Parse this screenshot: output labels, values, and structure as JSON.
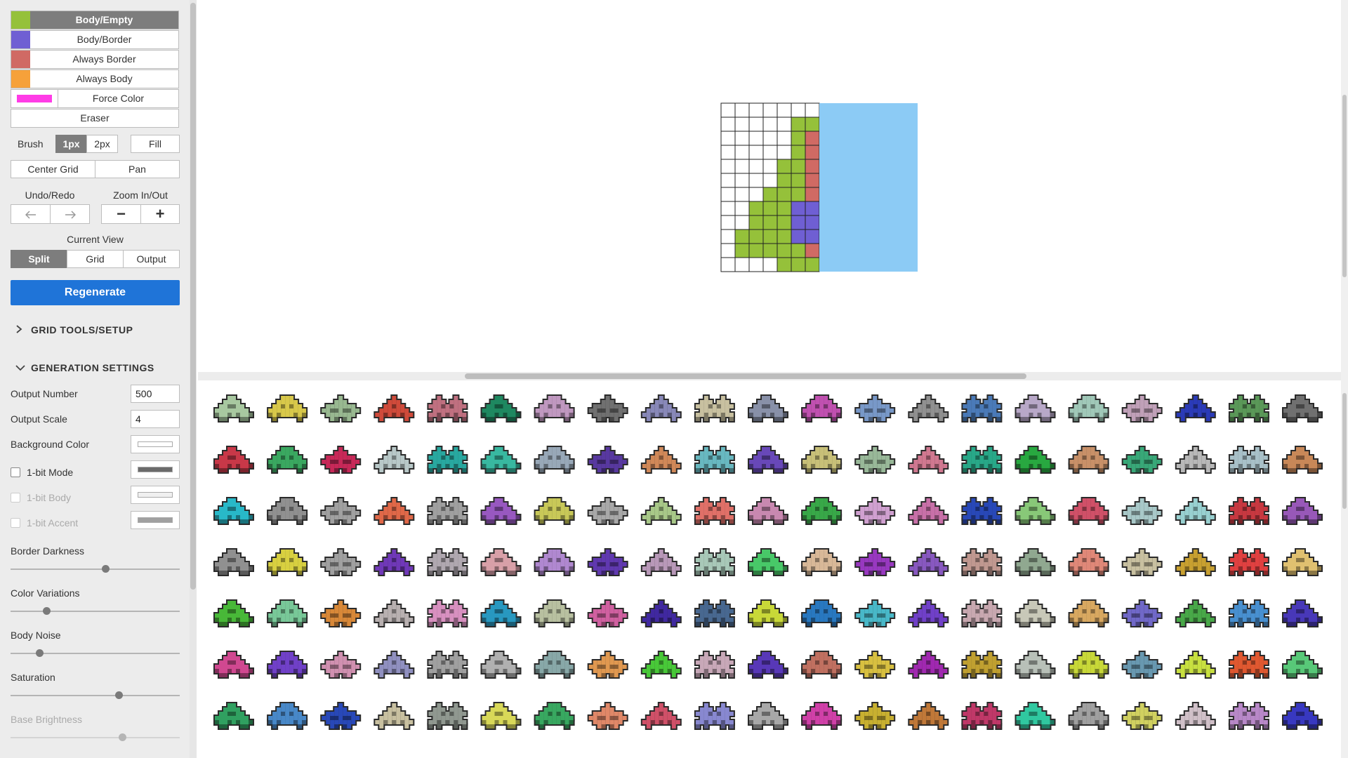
{
  "palette": [
    {
      "label": "Body/Empty",
      "color": "#95c13a",
      "selected": true
    },
    {
      "label": "Body/Border",
      "color": "#6f5fd3",
      "selected": false
    },
    {
      "label": "Always Border",
      "color": "#d06a64",
      "selected": false
    },
    {
      "label": "Always Body",
      "color": "#f6a13a",
      "selected": false
    },
    {
      "label": "Force Color",
      "color": "#ff3ce6",
      "selected": false
    },
    {
      "label": "Eraser",
      "color": null,
      "selected": false
    }
  ],
  "brush": {
    "label": "Brush",
    "option_1px": "1px",
    "option_2px": "2px",
    "selected": "1px",
    "fill": "Fill"
  },
  "tools": {
    "center_grid": "Center Grid",
    "pan": "Pan"
  },
  "undo_redo": {
    "label": "Undo/Redo",
    "undo_icon": "arrow-left-icon",
    "redo_icon": "arrow-right-icon"
  },
  "zoom": {
    "label": "Zoom In/Out",
    "out": "−",
    "in": "+"
  },
  "current_view": {
    "label": "Current View",
    "options": [
      "Split",
      "Grid",
      "Output"
    ],
    "selected": "Split"
  },
  "regenerate": "Regenerate",
  "sections": {
    "grid_tools": "GRID TOOLS/SETUP",
    "generation": "GENERATION SETTINGS"
  },
  "settings": {
    "output_number": {
      "label": "Output Number",
      "value": "500"
    },
    "output_scale": {
      "label": "Output Scale",
      "value": "4"
    },
    "background_color": {
      "label": "Background Color",
      "value": "#ffffff"
    },
    "one_bit_mode": {
      "label": "1-bit Mode",
      "checked": false,
      "color": "#6a6a6a"
    },
    "one_bit_body": {
      "label": "1-bit Body",
      "checked": false,
      "color": "#f0f0f0",
      "disabled": true
    },
    "one_bit_accent": {
      "label": "1-bit Accent",
      "checked": false,
      "color": "#a0a0a0",
      "disabled": true
    }
  },
  "sliders": [
    {
      "label": "Border Darkness",
      "value": 0.56,
      "disabled": false
    },
    {
      "label": "Color Variations",
      "value": 0.21,
      "disabled": false
    },
    {
      "label": "Body Noise",
      "value": 0.17,
      "disabled": false
    },
    {
      "label": "Saturation",
      "value": 0.64,
      "disabled": false
    },
    {
      "label": "Base Brightness",
      "value": 0.66,
      "disabled": true
    }
  ],
  "grid": {
    "cols": 7,
    "rows": 12,
    "mirror_color": "#8ccbf5",
    "cell_colors": {
      "1": "#95c13a",
      "2": "#6f5fd3",
      "3": "#d06a64"
    },
    "cells": [
      "0000000",
      "0000011",
      "0000013",
      "0000013",
      "0000113",
      "0000113",
      "0001113",
      "0011122",
      "0011122",
      "0111122",
      "0111113",
      "0000111"
    ]
  },
  "sprites": {
    "columns": 21,
    "rows": 7,
    "colors": [
      "#a8c8a0",
      "#d8c84a",
      "#98b890",
      "#d04a3a",
      "#c07080",
      "#1e8860",
      "#c098c0",
      "#707070",
      "#8888b8",
      "#c8c0a0",
      "#8890a8",
      "#c050b0",
      "#7898c8",
      "#909090",
      "#4a7ab8",
      "#b8a8c8",
      "#a0c8b8",
      "#c0a0b8",
      "#2a3ab8",
      "#5a9858",
      "#707070",
      "#c83848",
      "#3aa860",
      "#c82858",
      "#b8c8c8",
      "#28a8a0",
      "#38b8a0",
      "#98a8b8",
      "#5838a0",
      "#d08858",
      "#68b8c0",
      "#6848b8",
      "#c8c078",
      "#98b898",
      "#d07890",
      "#28a888",
      "#28a840",
      "#c89068",
      "#38a878",
      "#b8b8b8",
      "#a8c0c8",
      "#c88858",
      "#28b8c8",
      "#909090",
      "#a0a0a0",
      "#e06848",
      "#a0a0a0",
      "#9858c0",
      "#c8c858",
      "#a8a8a8",
      "#a8c888",
      "#e07068",
      "#c888b0",
      "#38a848",
      "#d0a0d0",
      "#c870a8",
      "#2848b8",
      "#88c878",
      "#d05068",
      "#a8c8c8",
      "#98d0d0",
      "#c83840",
      "#9858b8",
      "#909090",
      "#d8d040",
      "#a0a0a0",
      "#7038b8",
      "#b0a8b0",
      "#d8a0a8",
      "#b088d0",
      "#6038b0",
      "#b898b8",
      "#a8c8b8",
      "#48c868",
      "#d8b898",
      "#9838c0",
      "#8858c0",
      "#c09890",
      "#90a890",
      "#e08878",
      "#c8c0a0",
      "#c8a030",
      "#e04040",
      "#e0c070",
      "#48b838",
      "#78c898",
      "#d88838",
      "#b8b0b0",
      "#d890c0",
      "#2898c0",
      "#b8c0a0",
      "#d060a0",
      "#4028a0",
      "#486890",
      "#c8d838",
      "#2878c0",
      "#48b8c8",
      "#7040c8",
      "#c8a8b0",
      "#c8c8b8",
      "#d8a860",
      "#7068c8",
      "#48a848",
      "#4890d0",
      "#4838b8",
      "#d04890",
      "#7040c8",
      "#d090b0",
      "#9090c0",
      "#a0a0a0",
      "#b0b0b0",
      "#88a8a8",
      "#e09850",
      "#48c838",
      "#c8a8b8",
      "#5838b8",
      "#c07060",
      "#d8c040",
      "#a028b0",
      "#c0a030",
      "#b8c0b8",
      "#c8d838",
      "#6898b0",
      "#c8e040",
      "#e05830",
      "#58c878",
      "#30a060",
      "#4888c8",
      "#2848b8",
      "#c8c0a0",
      "#909890",
      "#d8d858",
      "#38a860",
      "#e08868",
      "#d05068",
      "#8888d0",
      "#a8a8a8",
      "#d040a8",
      "#c8b030",
      "#c07838",
      "#c03868",
      "#30c8a0",
      "#a0a0a0",
      "#d0d060",
      "#d0c0c8",
      "#b888c8",
      "#3838c0"
    ]
  }
}
